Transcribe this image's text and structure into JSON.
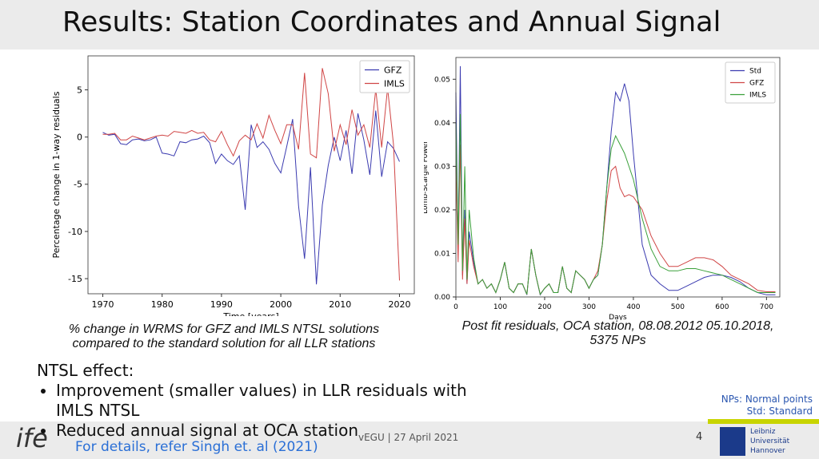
{
  "slide": {
    "title": "Results: Station Coordinates and Annual Signal",
    "captions": [
      "% change in WRMS for GFZ and IMLS NTSL solutions compared to the standard solution for all LLR stations",
      "Post fit residuals, OCA station, 08.08.2012 05.10.2018, 5375 NPs"
    ],
    "heading": "NTSL effect:",
    "bullets": [
      "Improvement (smaller values) in LLR residuals with IMLS NTSL",
      "Reduced annual signal at OCA station"
    ],
    "reference": "For details, refer Singh et. al (2021)",
    "notes": [
      "NPs: Normal points",
      "Std: Standard"
    ],
    "footer": "vEGU | 27 April 2021",
    "page": "4",
    "logo": "ife",
    "university": [
      "Leibniz",
      "Universität",
      "Hannover"
    ]
  },
  "chart_data": [
    {
      "type": "line",
      "xlabel": "Time [years]",
      "ylabel": "Percentage change in 1-way residuals",
      "legend": "upper right",
      "x": [
        1970,
        1971,
        1972,
        1973,
        1974,
        1975,
        1976,
        1977,
        1978,
        1979,
        1980,
        1981,
        1982,
        1983,
        1984,
        1985,
        1986,
        1987,
        1988,
        1989,
        1990,
        1991,
        1992,
        1993,
        1994,
        1995,
        1996,
        1997,
        1998,
        1999,
        2000,
        2001,
        2002,
        2003,
        2004,
        2005,
        2006,
        2007,
        2008,
        2009,
        2010,
        2011,
        2012,
        2013,
        2014,
        2015,
        2016,
        2017,
        2018,
        2019,
        2020
      ],
      "xlim": [
        1967.5,
        2022.5
      ],
      "xticks": [
        1970,
        1980,
        1990,
        2000,
        2010,
        2020
      ],
      "ylim": [
        -16.6,
        8.6
      ],
      "yticks": [
        -15,
        -10,
        -5,
        0,
        5
      ],
      "series": [
        {
          "name": "GFZ",
          "color": "#3b3bb0",
          "values": [
            0.5,
            0.2,
            0.3,
            -0.7,
            -0.8,
            -0.3,
            -0.2,
            -0.4,
            -0.3,
            0,
            -1.7,
            -1.8,
            -2.0,
            -0.5,
            -0.6,
            -0.3,
            -0.2,
            0.1,
            -0.6,
            -2.8,
            -1.8,
            -2.5,
            -2.9,
            -2.0,
            -7.7,
            1.3,
            -1.1,
            -0.5,
            -1.3,
            -2.8,
            -3.8,
            -1.0,
            1.9,
            -7.3,
            -12.9,
            -3.2,
            -15.6,
            -7.2,
            -3.0,
            0,
            -2.5,
            0.7,
            -3.9,
            2.5,
            -0.3,
            -4.0,
            2.8,
            -4.2,
            -0.5,
            -1.2,
            -2.6
          ]
        },
        {
          "name": "IMLS",
          "color": "#d04545",
          "values": [
            0.3,
            0.3,
            0.4,
            -0.3,
            -0.3,
            0.1,
            -0.1,
            -0.3,
            -0.1,
            0.1,
            0.2,
            0.1,
            0.6,
            0.5,
            0.4,
            0.7,
            0.4,
            0.5,
            -0.3,
            -0.5,
            0.6,
            -0.8,
            -2.0,
            -0.4,
            0.2,
            -0.3,
            1.4,
            -0.1,
            2.3,
            0.7,
            -0.7,
            1.3,
            1.3,
            -1.3,
            6.8,
            -1.8,
            -2.2,
            7.3,
            4.6,
            -1.5,
            1.3,
            -0.8,
            2.9,
            0.2,
            1.3,
            -1.1,
            5.1,
            -1.1,
            5.2,
            -0.8,
            -15.2
          ]
        }
      ]
    },
    {
      "type": "line",
      "xlabel": "Days",
      "ylabel": "Lomb-Scargle Power",
      "legend": "upper right",
      "x": [
        0,
        5,
        10,
        15,
        20,
        25,
        30,
        40,
        50,
        60,
        70,
        80,
        90,
        100,
        110,
        120,
        130,
        140,
        150,
        160,
        170,
        180,
        190,
        200,
        210,
        220,
        230,
        240,
        250,
        260,
        270,
        280,
        290,
        300,
        310,
        320,
        330,
        340,
        350,
        360,
        370,
        380,
        390,
        400,
        420,
        440,
        460,
        480,
        500,
        520,
        540,
        560,
        580,
        600,
        620,
        640,
        660,
        680,
        700,
        720
      ],
      "xlim": [
        0,
        730
      ],
      "xticks": [
        0,
        100,
        200,
        300,
        400,
        500,
        600,
        700
      ],
      "ylim": [
        0,
        0.055
      ],
      "yticks": [
        {
          "value": 0,
          "label": "0.00"
        },
        {
          "value": 0.01,
          "label": "0.01"
        },
        {
          "value": 0.02,
          "label": "0.02"
        },
        {
          "value": 0.03,
          "label": "0.03"
        },
        {
          "value": 0.04,
          "label": "0.04"
        },
        {
          "value": 0.05,
          "label": "0.05"
        }
      ],
      "series": [
        {
          "name": "Std",
          "color": "#3b3bb0",
          "values": [
            0.047,
            0.01,
            0.053,
            0.005,
            0.02,
            0.003,
            0.015,
            0.008,
            0.003,
            0.004,
            0.002,
            0.003,
            0.001,
            0.004,
            0.008,
            0.002,
            0.001,
            0.003,
            0.003,
            0.0005,
            0.011,
            0.005,
            0.0005,
            0.002,
            0.003,
            0.001,
            0.001,
            0.007,
            0.002,
            0.001,
            0.006,
            0.005,
            0.004,
            0.002,
            0.004,
            0.005,
            0.012,
            0.025,
            0.038,
            0.047,
            0.045,
            0.049,
            0.045,
            0.033,
            0.012,
            0.005,
            0.003,
            0.0015,
            0.0015,
            0.0025,
            0.0035,
            0.0045,
            0.005,
            0.005,
            0.0045,
            0.0035,
            0.002,
            0.001,
            0.0005,
            0.0005
          ]
        },
        {
          "name": "GFZ",
          "color": "#d04545",
          "values": [
            0.03,
            0.008,
            0.035,
            0.004,
            0.018,
            0.003,
            0.013,
            0.007,
            0.003,
            0.004,
            0.002,
            0.003,
            0.001,
            0.004,
            0.008,
            0.002,
            0.001,
            0.003,
            0.003,
            0.0006,
            0.011,
            0.005,
            0.0006,
            0.002,
            0.003,
            0.001,
            0.001,
            0.007,
            0.002,
            0.001,
            0.006,
            0.005,
            0.004,
            0.002,
            0.004,
            0.006,
            0.012,
            0.022,
            0.029,
            0.03,
            0.025,
            0.023,
            0.0235,
            0.023,
            0.02,
            0.014,
            0.01,
            0.007,
            0.007,
            0.008,
            0.009,
            0.009,
            0.0085,
            0.007,
            0.005,
            0.004,
            0.003,
            0.0015,
            0.0012,
            0.0012
          ]
        },
        {
          "name": "IMLS",
          "color": "#3aa03a",
          "values": [
            0.04,
            0.012,
            0.042,
            0.006,
            0.03,
            0.004,
            0.02,
            0.009,
            0.003,
            0.004,
            0.002,
            0.003,
            0.001,
            0.004,
            0.008,
            0.002,
            0.001,
            0.003,
            0.003,
            0.0006,
            0.011,
            0.005,
            0.0006,
            0.002,
            0.003,
            0.001,
            0.001,
            0.007,
            0.002,
            0.001,
            0.006,
            0.005,
            0.004,
            0.002,
            0.004,
            0.005,
            0.012,
            0.025,
            0.034,
            0.037,
            0.035,
            0.033,
            0.03,
            0.027,
            0.018,
            0.011,
            0.007,
            0.006,
            0.006,
            0.0065,
            0.0065,
            0.006,
            0.0055,
            0.005,
            0.004,
            0.003,
            0.002,
            0.001,
            0.001,
            0.001
          ]
        }
      ]
    }
  ]
}
